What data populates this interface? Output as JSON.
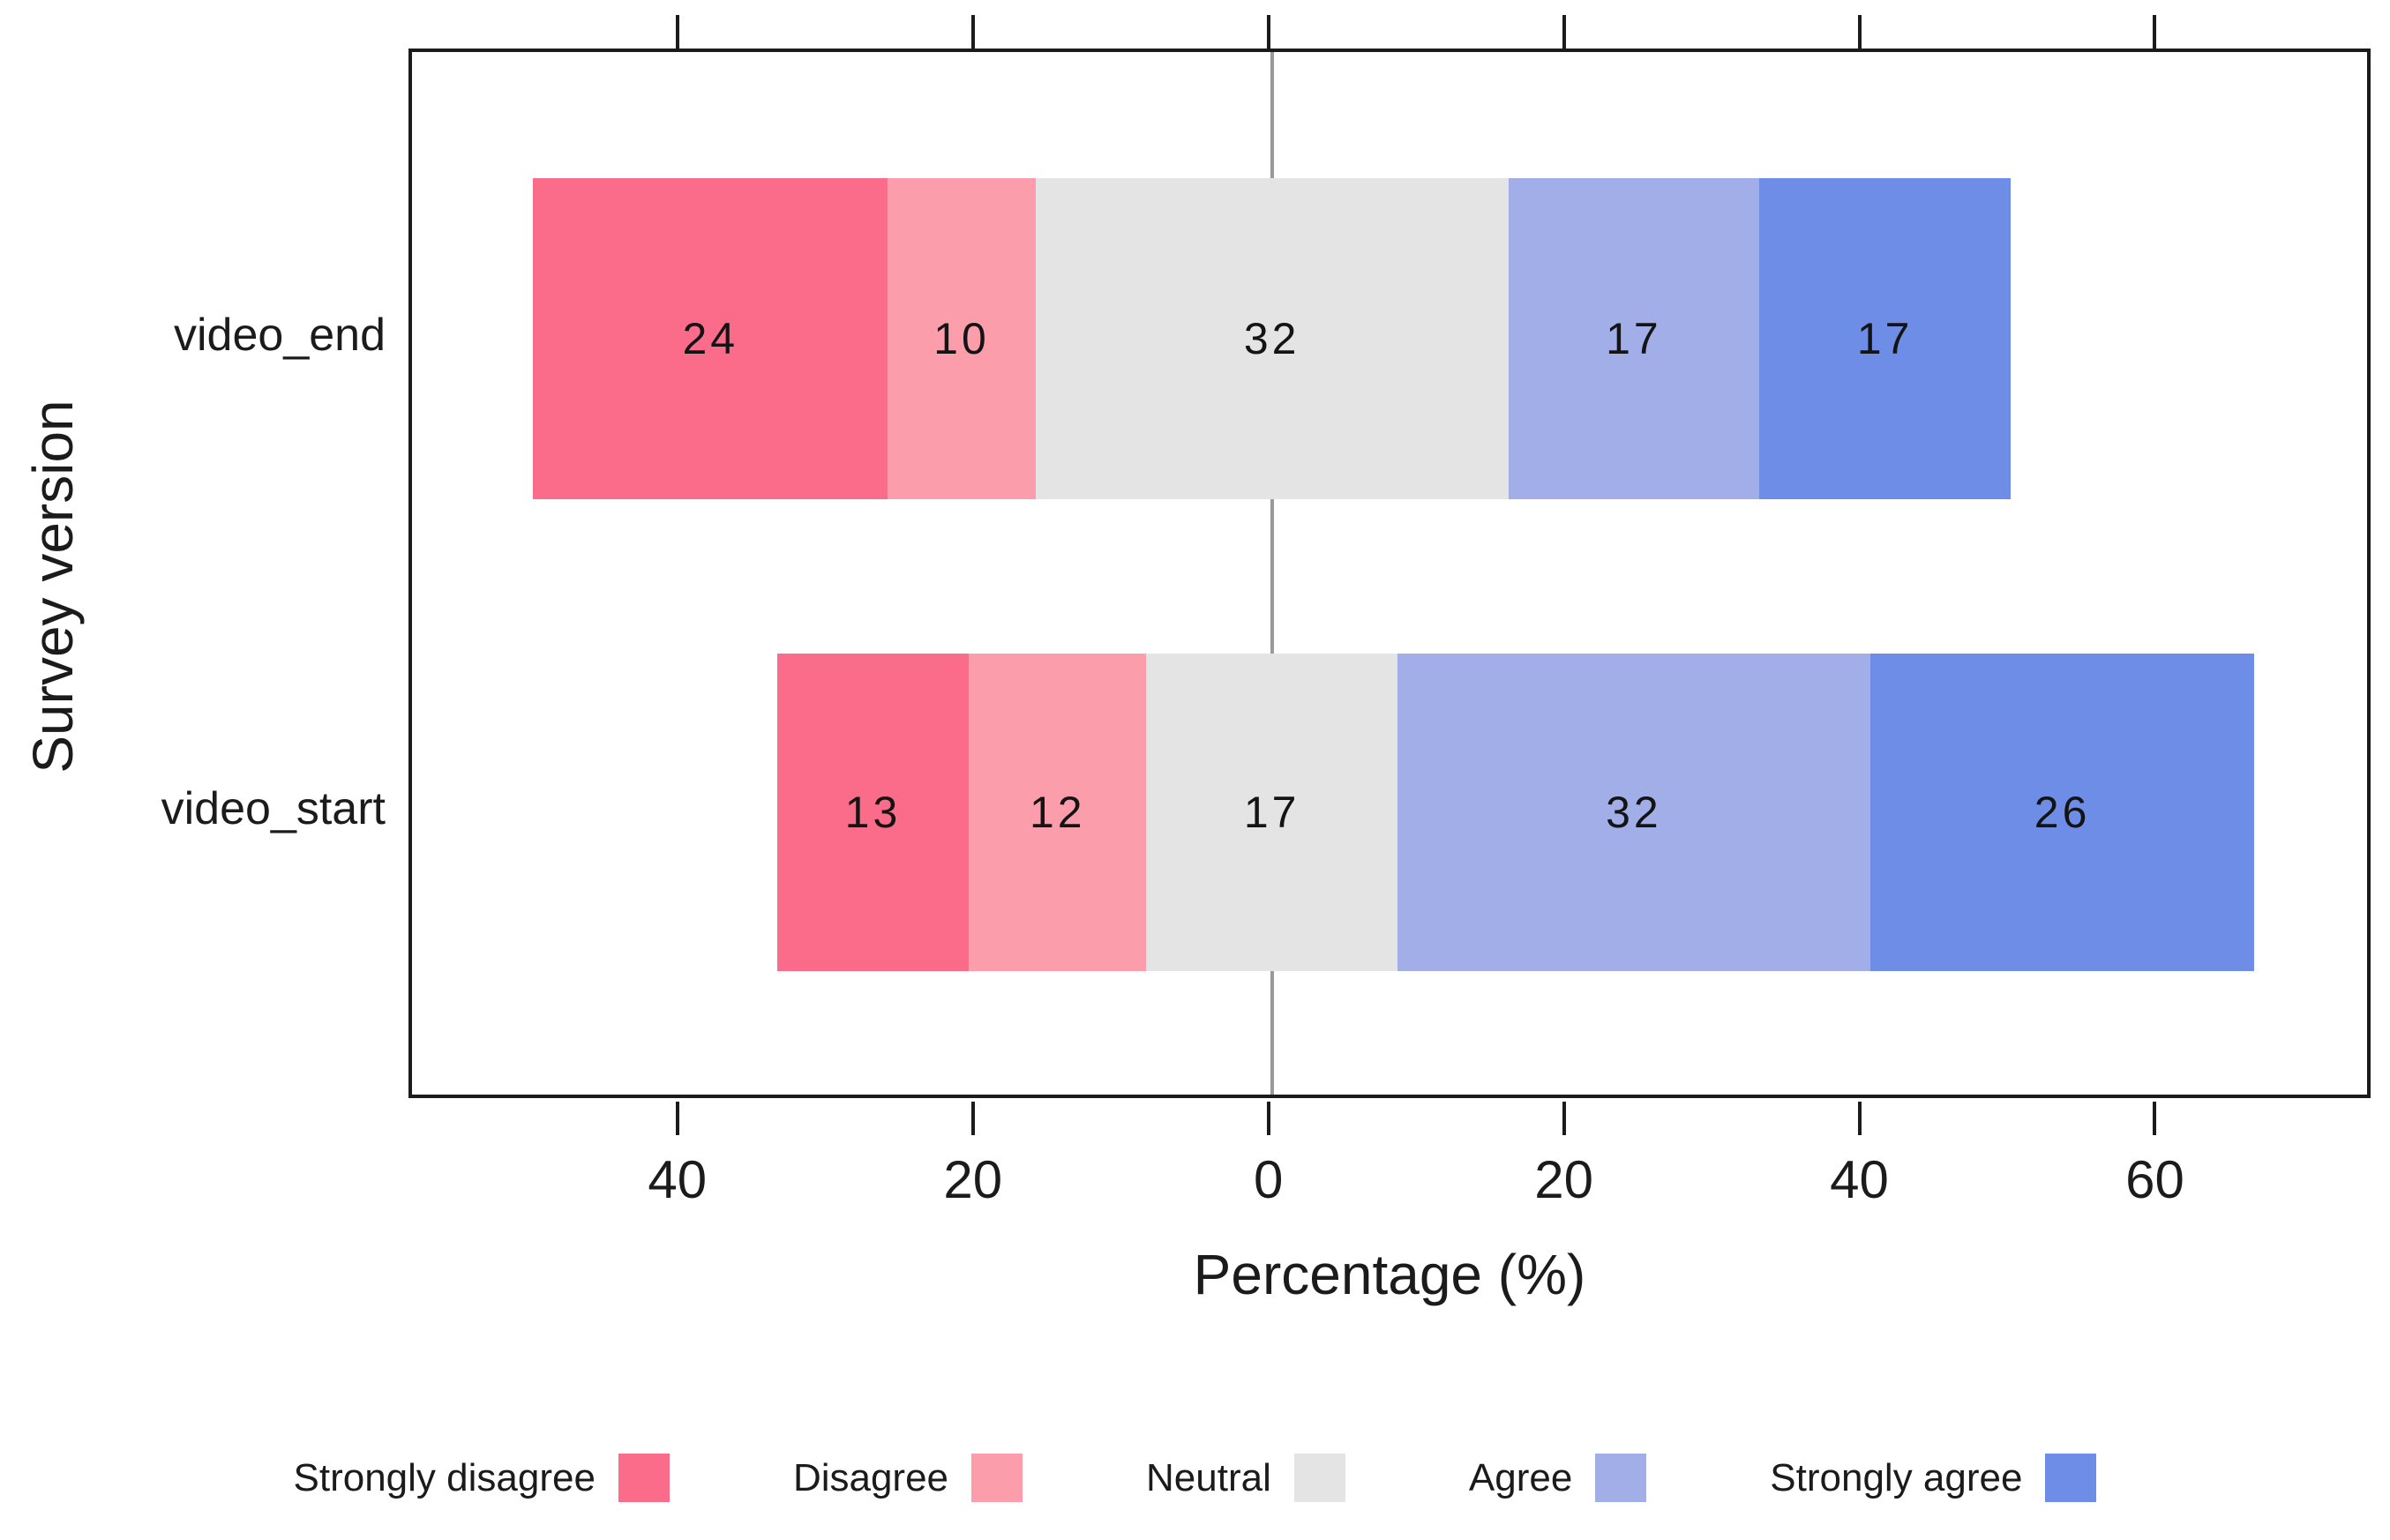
{
  "figure": {
    "x_axis_title": "Percentage (%)",
    "y_axis_title": "Survey version"
  },
  "chart_data": {
    "type": "bar",
    "subtype": "diverging-stacked-likert",
    "orientation": "horizontal",
    "title": "",
    "xlabel": "Percentage (%)",
    "ylabel": "Survey version",
    "categories": [
      "video_end",
      "video_start"
    ],
    "series": [
      {
        "name": "Strongly disagree",
        "color": "#FB6C8B",
        "values": [
          24,
          13
        ]
      },
      {
        "name": "Disagree",
        "color": "#FC9DAB",
        "values": [
          10,
          12
        ]
      },
      {
        "name": "Neutral",
        "color": "#E4E4E4",
        "values": [
          32,
          17
        ]
      },
      {
        "name": "Agree",
        "color": "#A2AEE8",
        "values": [
          17,
          32
        ]
      },
      {
        "name": "Strongly agree",
        "color": "#6E8DE6",
        "values": [
          17,
          26
        ]
      }
    ],
    "alignment": "neutral-centered-on-zero",
    "value_labels_shown": true,
    "x_axis": {
      "min": -58.2,
      "max": 74.6,
      "ticks": [
        {
          "value": -40,
          "label": "40"
        },
        {
          "value": -20,
          "label": "20"
        },
        {
          "value": 0,
          "label": "0"
        },
        {
          "value": 20,
          "label": "20"
        },
        {
          "value": 40,
          "label": "40"
        },
        {
          "value": 60,
          "label": "60"
        }
      ],
      "zero_line": true,
      "zero_line_color": "#9A9A9A"
    },
    "grid": false,
    "legend_position": "bottom",
    "legend_entries": [
      "Strongly disagree",
      "Disagree",
      "Neutral",
      "Agree",
      "Strongly agree"
    ]
  }
}
